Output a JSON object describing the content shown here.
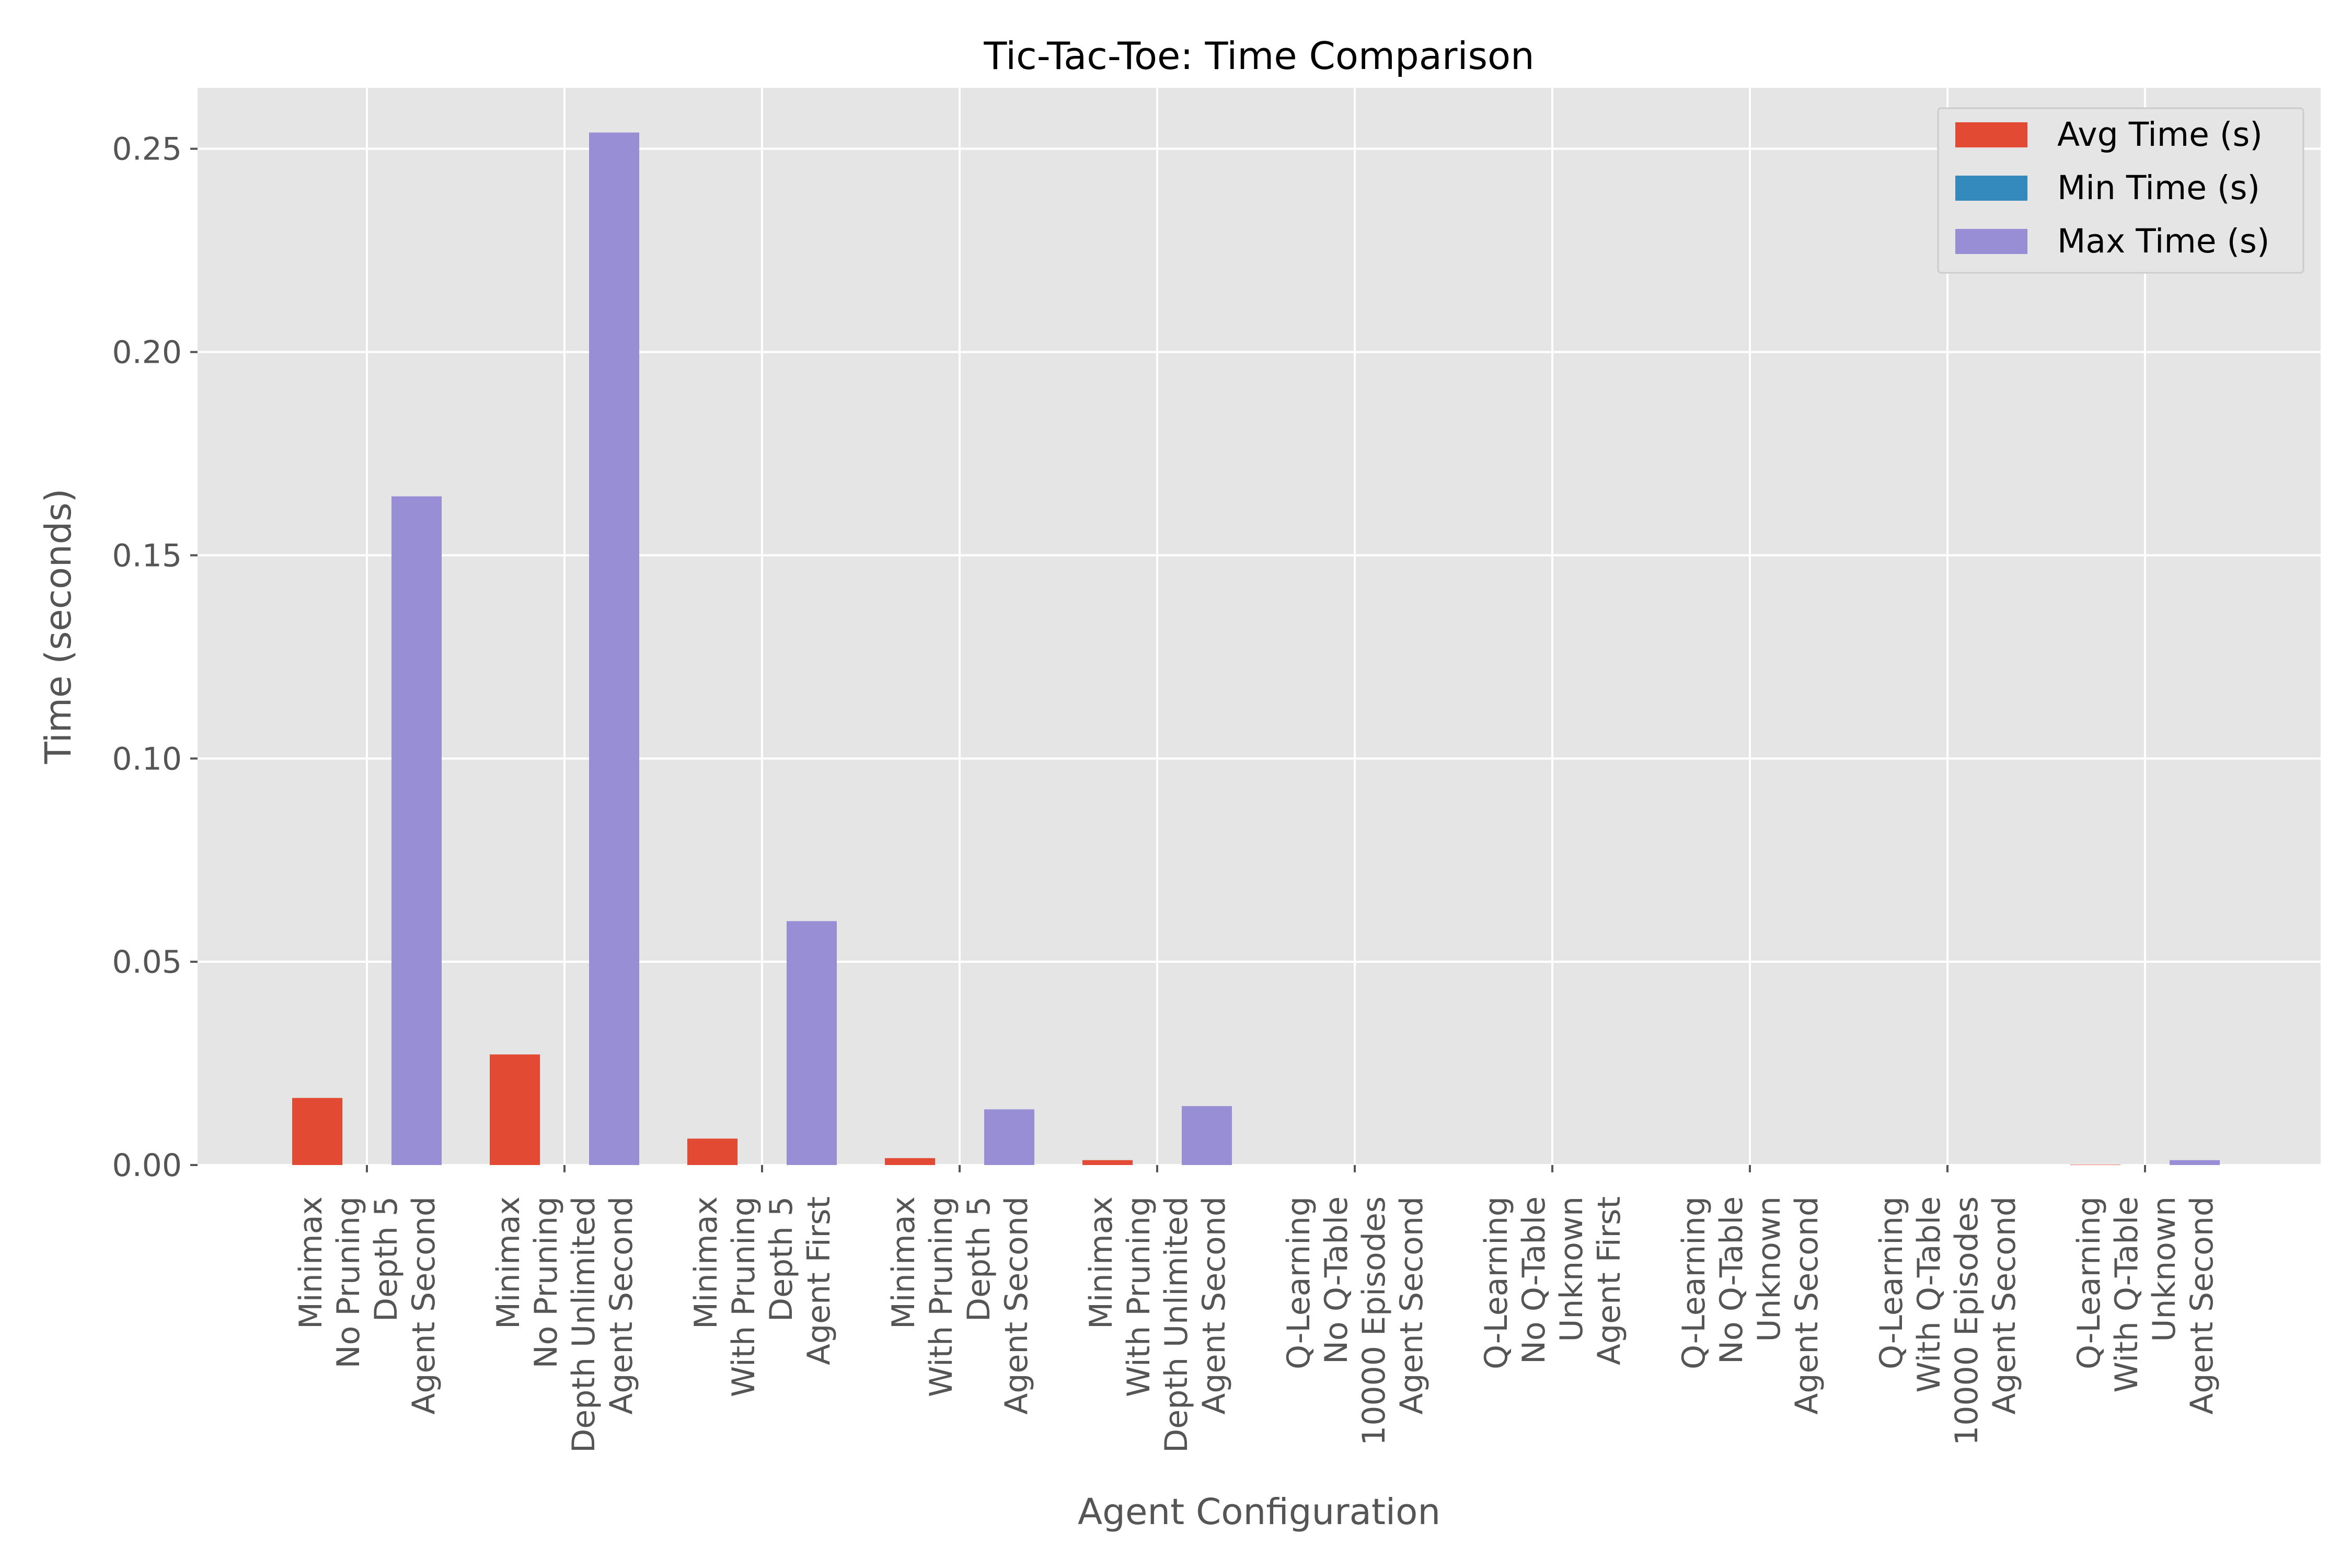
{
  "chart_data": {
    "type": "bar",
    "title": "Tic-Tac-Toe: Time Comparison",
    "xlabel": "Agent Configuration",
    "ylabel": "Time (seconds)",
    "ylim": [
      0,
      0.265
    ],
    "yticks": [
      "0.00",
      "0.05",
      "0.10",
      "0.15",
      "0.20",
      "0.25"
    ],
    "categories": [
      [
        "Minimax",
        "No Pruning",
        "Depth 5",
        "Agent Second"
      ],
      [
        "Minimax",
        "No Pruning",
        "Depth Unlimited",
        "Agent Second"
      ],
      [
        "Minimax",
        "With Pruning",
        "Depth 5",
        "Agent First"
      ],
      [
        "Minimax",
        "With Pruning",
        "Depth 5",
        "Agent Second"
      ],
      [
        "Minimax",
        "With Pruning",
        "Depth Unlimited",
        "Agent Second"
      ],
      [
        "Q-Learning",
        "No Q-Table",
        "10000 Episodes",
        "Agent Second"
      ],
      [
        "Q-Learning",
        "No Q-Table",
        "Unknown",
        "Agent First"
      ],
      [
        "Q-Learning",
        "No Q-Table",
        "Unknown",
        "Agent Second"
      ],
      [
        "Q-Learning",
        "With Q-Table",
        "10000 Episodes",
        "Agent Second"
      ],
      [
        "Q-Learning",
        "With Q-Table",
        "Unknown",
        "Agent Second"
      ]
    ],
    "series": [
      {
        "name": "Avg Time (s)",
        "color": "#E24A33",
        "values": [
          0.0165,
          0.0272,
          0.0065,
          0.0017,
          0.0012,
          0.0,
          0.0,
          0.0,
          0.0,
          0.0001
        ]
      },
      {
        "name": "Min Time (s)",
        "color": "#348ABD",
        "values": [
          0.0,
          0.0,
          0.0,
          0.0,
          0.0,
          0.0,
          0.0,
          0.0,
          0.0,
          0.0
        ]
      },
      {
        "name": "Max Time (s)",
        "color": "#988ED5",
        "values": [
          0.1645,
          0.254,
          0.06,
          0.0137,
          0.0145,
          0.0,
          0.0,
          0.0,
          0.0,
          0.0012
        ]
      }
    ],
    "grid": true,
    "legend_position": "top-right"
  }
}
